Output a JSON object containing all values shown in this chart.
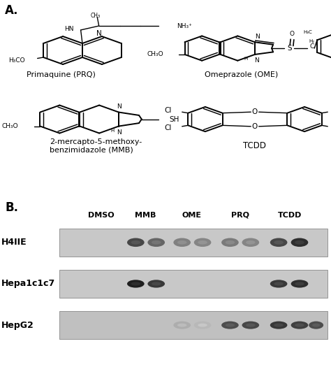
{
  "panel_a_label": "A.",
  "panel_b_label": "B.",
  "compound_labels": [
    "Primaquine (PRQ)",
    "Omeprazole (OME)",
    "2-mercapto-5-methoxy-\nbenzimidazole (MMB)",
    "TCDD"
  ],
  "lane_labels": [
    "DMSO",
    "MMB",
    "OME",
    "PRQ",
    "TCDD"
  ],
  "row_labels": [
    "H4IIE",
    "Hepa1c1c7",
    "HepG2"
  ],
  "bg_color": "#f0f0f0",
  "blot_bg_h4": "#c0c0c0",
  "blot_bg_hepa": "#c0c0c0",
  "blot_bg_hepg2": "#b8b8b8",
  "label_fontsize": 9,
  "lane_label_fontsize": 8,
  "row_label_fontsize": 9,
  "panel_label_fontsize": 11,
  "fig_bg": "#f5f5f5"
}
